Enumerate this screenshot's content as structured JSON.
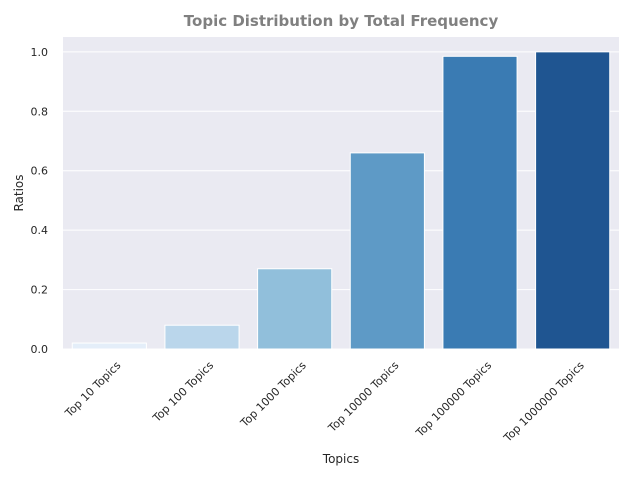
{
  "chart_data": {
    "type": "bar",
    "title": "Topic Distribution by Total Frequency",
    "xlabel": "Topics",
    "ylabel": "Ratios",
    "categories": [
      "Top 10 Topics",
      "Top 100 Topics",
      "Top 1000 Topics",
      "Top 10000 Topics",
      "Top 100000 Topics",
      "Top 1000000 Topics"
    ],
    "values": [
      0.02,
      0.08,
      0.27,
      0.66,
      0.985,
      1.0
    ],
    "ylim": [
      0,
      1.05
    ],
    "yticks": [
      0.0,
      0.2,
      0.4,
      0.6,
      0.8,
      1.0
    ],
    "ytick_labels": [
      "0.0",
      "0.2",
      "0.4",
      "0.6",
      "0.8",
      "1.0"
    ],
    "colors": [
      "#e4eef9",
      "#bad6eb",
      "#91bfdb",
      "#5e9ac6",
      "#3a7bb3",
      "#1f5591"
    ],
    "background": "#eaeaf2",
    "grid": true,
    "title_color": "#808080"
  }
}
